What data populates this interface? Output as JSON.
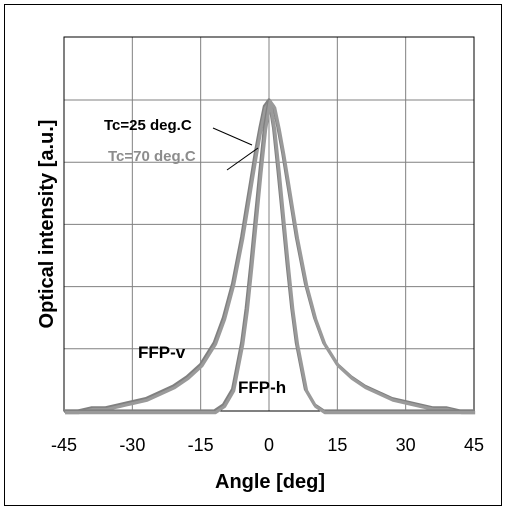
{
  "chart_data": {
    "type": "line",
    "xlabel": "Angle [deg]",
    "ylabel": "Optical intensity [a.u.]",
    "xlim": [
      -45,
      45
    ],
    "ylim": [
      0,
      1.0
    ],
    "x_ticks": [
      -45,
      -30,
      -15,
      0,
      15,
      30,
      45
    ],
    "y_gridlines": 5,
    "grid": true,
    "colors": {
      "curve": "#808080",
      "grid": "#808080",
      "annotation_25": "#000000",
      "annotation_70": "#8c8c8c"
    },
    "x": [
      -45,
      -42,
      -39,
      -36,
      -33,
      -30,
      -27,
      -24,
      -21,
      -18,
      -15,
      -12,
      -10,
      -8,
      -6,
      -5,
      -4,
      -3,
      -2,
      -1,
      0,
      1,
      2,
      3,
      4,
      5,
      6,
      8,
      10,
      12,
      15,
      18,
      21,
      24,
      27,
      30,
      33,
      36,
      39,
      42,
      45
    ],
    "series": [
      {
        "name": "FFP-v",
        "values": [
          0.0,
          0.0,
          0.01,
          0.01,
          0.02,
          0.03,
          0.04,
          0.06,
          0.08,
          0.11,
          0.15,
          0.22,
          0.3,
          0.41,
          0.56,
          0.65,
          0.74,
          0.83,
          0.91,
          0.98,
          1.0,
          0.98,
          0.91,
          0.83,
          0.74,
          0.65,
          0.56,
          0.41,
          0.3,
          0.22,
          0.15,
          0.11,
          0.08,
          0.06,
          0.04,
          0.03,
          0.02,
          0.01,
          0.01,
          0.0,
          0.0
        ]
      },
      {
        "name": "FFP-h",
        "values": [
          0.0,
          0.0,
          0.0,
          0.0,
          0.0,
          0.0,
          0.0,
          0.0,
          0.0,
          0.0,
          0.0,
          0.0,
          0.02,
          0.07,
          0.22,
          0.33,
          0.47,
          0.62,
          0.77,
          0.91,
          1.0,
          0.91,
          0.77,
          0.62,
          0.47,
          0.33,
          0.22,
          0.07,
          0.02,
          0.0,
          0.0,
          0.0,
          0.0,
          0.0,
          0.0,
          0.0,
          0.0,
          0.0,
          0.0,
          0.0,
          0.0
        ]
      }
    ],
    "annotations": [
      "Tc=25 deg.C",
      "Tc=70 deg.C",
      "FFP-v",
      "FFP-h"
    ]
  }
}
